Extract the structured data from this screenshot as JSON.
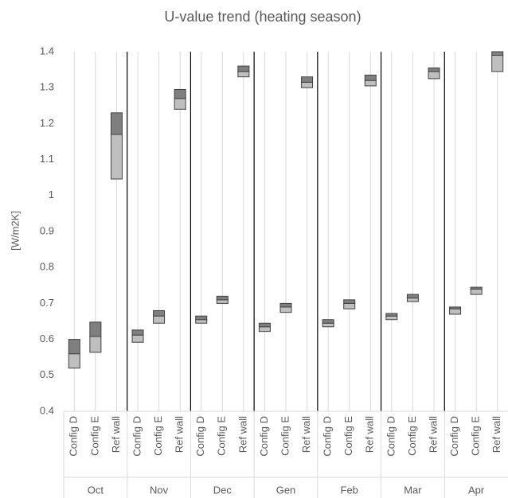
{
  "chart_data": {
    "type": "floating-box",
    "title": "U-value trend (heating season)",
    "y_label": "[W/m2K]",
    "ylim": [
      0.4,
      1.4
    ],
    "yticks": [
      0.4,
      0.5,
      0.6,
      0.7,
      0.8,
      0.9,
      1,
      1.1,
      1.2,
      1.3,
      1.4
    ],
    "low_color": "#bfbfbf",
    "high_color": "#7f7f7f",
    "groups": [
      {
        "label": "Oct",
        "items": [
          {
            "label": "Config D",
            "low": 0.52,
            "mid": 0.56,
            "high": 0.6
          },
          {
            "label": "Config E",
            "low": 0.564,
            "mid": 0.608,
            "high": 0.648
          },
          {
            "label": "Ref wall",
            "low": 1.046,
            "mid": 1.17,
            "high": 1.23
          }
        ]
      },
      {
        "label": "Nov",
        "items": [
          {
            "label": "Config D",
            "low": 0.592,
            "mid": 0.612,
            "high": 0.626
          },
          {
            "label": "Config E",
            "low": 0.645,
            "mid": 0.665,
            "high": 0.68
          },
          {
            "label": "Ref wall",
            "low": 1.24,
            "mid": 1.27,
            "high": 1.295
          }
        ]
      },
      {
        "label": "Dec",
        "items": [
          {
            "label": "Config D",
            "low": 0.645,
            "mid": 0.655,
            "high": 0.665
          },
          {
            "label": "Config E",
            "low": 0.7,
            "mid": 0.71,
            "high": 0.72
          },
          {
            "label": "Ref wall",
            "low": 1.33,
            "mid": 1.345,
            "high": 1.36
          }
        ]
      },
      {
        "label": "Gen",
        "items": [
          {
            "label": "Config D",
            "low": 0.622,
            "mid": 0.635,
            "high": 0.645
          },
          {
            "label": "Config E",
            "low": 0.675,
            "mid": 0.69,
            "high": 0.7
          },
          {
            "label": "Ref wall",
            "low": 1.3,
            "mid": 1.315,
            "high": 1.33
          }
        ]
      },
      {
        "label": "Feb",
        "items": [
          {
            "label": "Config D",
            "low": 0.635,
            "mid": 0.645,
            "high": 0.655
          },
          {
            "label": "Config E",
            "low": 0.685,
            "mid": 0.7,
            "high": 0.71
          },
          {
            "label": "Ref wall",
            "low": 1.305,
            "mid": 1.32,
            "high": 1.335
          }
        ]
      },
      {
        "label": "Mar",
        "items": [
          {
            "label": "Config D",
            "low": 0.655,
            "mid": 0.665,
            "high": 0.672
          },
          {
            "label": "Config E",
            "low": 0.705,
            "mid": 0.715,
            "high": 0.725
          },
          {
            "label": "Ref wall",
            "low": 1.325,
            "mid": 1.345,
            "high": 1.355
          }
        ]
      },
      {
        "label": "Apr",
        "items": [
          {
            "label": "Config D",
            "low": 0.67,
            "mid": 0.685,
            "high": 0.69
          },
          {
            "label": "Config E",
            "low": 0.725,
            "mid": 0.74,
            "high": 0.745
          },
          {
            "label": "Ref wall",
            "low": 1.345,
            "mid": 1.39,
            "high": 1.4
          }
        ]
      }
    ]
  }
}
